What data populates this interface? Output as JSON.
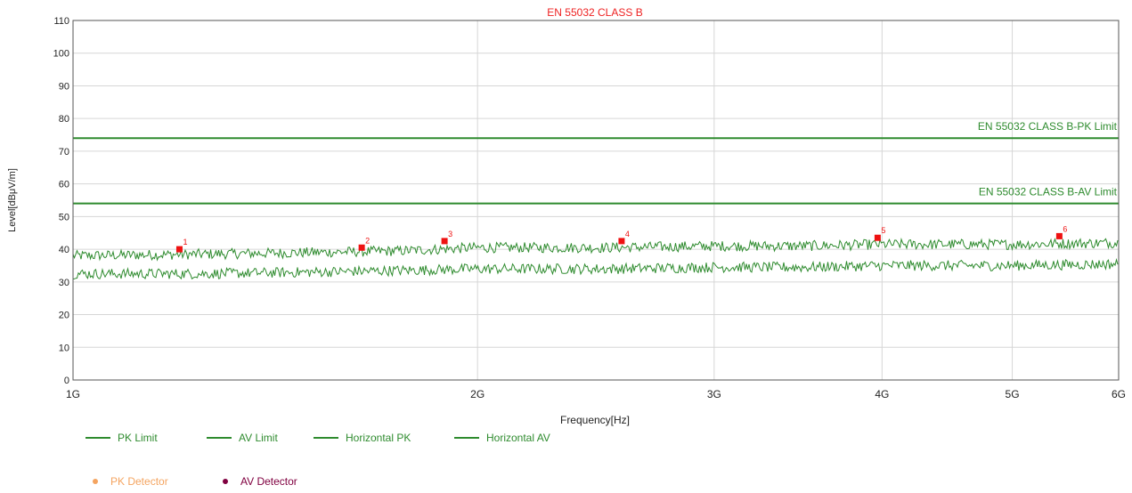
{
  "chart_data": {
    "type": "line",
    "title": "EN 55032 CLASS B",
    "xlabel": "Frequency[Hz]",
    "ylabel": "Level[dBμV/m]",
    "x_scale": "log",
    "x_range_hz": [
      1000000000,
      6000000000
    ],
    "ylim": [
      0,
      110
    ],
    "y_ticks": [
      0,
      10,
      20,
      30,
      40,
      50,
      60,
      70,
      80,
      90,
      100,
      110
    ],
    "x_ticks": [
      {
        "value_hz": 1000000000,
        "label": "1G"
      },
      {
        "value_hz": 2000000000,
        "label": "2G"
      },
      {
        "value_hz": 3000000000,
        "label": "3G"
      },
      {
        "value_hz": 4000000000,
        "label": "4G"
      },
      {
        "value_hz": 5000000000,
        "label": "5G"
      },
      {
        "value_hz": 6000000000,
        "label": "6G"
      }
    ],
    "grid": true,
    "limits": [
      {
        "name": "PK Limit",
        "value": 74,
        "label": "EN 55032 CLASS B-PK Limit",
        "color": "#2e8b2e"
      },
      {
        "name": "AV Limit",
        "value": 54,
        "label": "EN 55032 CLASS B-AV Limit",
        "color": "#2e8b2e"
      }
    ],
    "series": [
      {
        "name": "Horizontal PK",
        "color": "#2e8b2e",
        "x_hz": [
          1000000000,
          1250000000,
          1500000000,
          1750000000,
          2000000000,
          2500000000,
          3000000000,
          3500000000,
          4000000000,
          5000000000,
          6000000000
        ],
        "values": [
          38,
          38.5,
          39,
          39.5,
          40.5,
          40.5,
          41,
          41,
          41.5,
          41.5,
          42
        ]
      },
      {
        "name": "Horizontal AV",
        "color": "#2e8b2e",
        "x_hz": [
          1000000000,
          1250000000,
          1500000000,
          1750000000,
          2000000000,
          2500000000,
          3000000000,
          3500000000,
          4000000000,
          5000000000,
          6000000000
        ],
        "values": [
          32.5,
          32.5,
          33,
          33.5,
          34,
          34,
          34.5,
          34.5,
          35,
          35,
          35.5
        ]
      }
    ],
    "markers": [
      {
        "label": "1",
        "x_hz": 1200000000,
        "value": 40
      },
      {
        "label": "2",
        "x_hz": 1640000000,
        "value": 40.5
      },
      {
        "label": "3",
        "x_hz": 1890000000,
        "value": 42.5
      },
      {
        "label": "4",
        "x_hz": 2560000000,
        "value": 42.5
      },
      {
        "label": "5",
        "x_hz": 3970000000,
        "value": 43.5
      },
      {
        "label": "6",
        "x_hz": 5420000000,
        "value": 44
      }
    ],
    "marker_color": "#ee1111",
    "title_color": "#ee2222",
    "legend": [
      {
        "name": "PK Limit",
        "color": "#2e8b2e"
      },
      {
        "name": "AV Limit",
        "color": "#2e8b2e"
      },
      {
        "name": "Horizontal PK",
        "color": "#2e8b2e"
      },
      {
        "name": "Horizontal AV",
        "color": "#2e8b2e"
      }
    ],
    "detector_legend": [
      {
        "name": "PK Detector",
        "color": "#f4a460"
      },
      {
        "name": "AV Detector",
        "color": "#800040"
      }
    ]
  }
}
